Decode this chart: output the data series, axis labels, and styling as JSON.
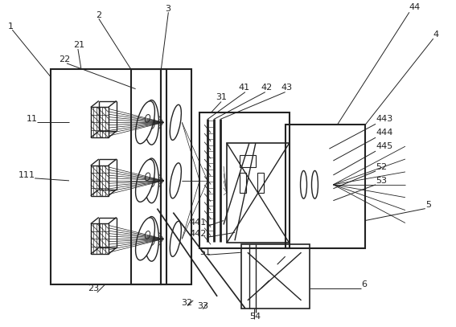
{
  "bg_color": "#ffffff",
  "line_color": "#222222",
  "fig_width": 5.67,
  "fig_height": 4.07,
  "dpi": 100
}
